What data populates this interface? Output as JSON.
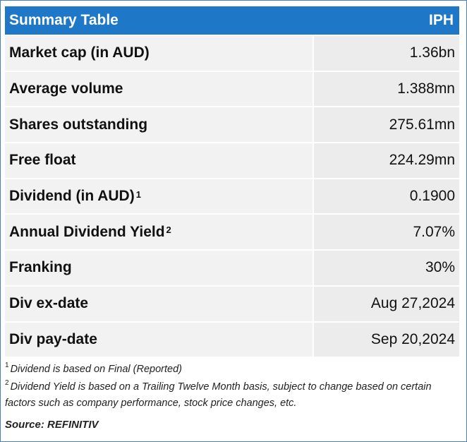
{
  "header": {
    "title": "Summary Table",
    "ticker": "IPH"
  },
  "rows": [
    {
      "label": "Market cap (in AUD)",
      "sup": "",
      "value": "1.36bn"
    },
    {
      "label": "Average volume",
      "sup": "",
      "value": "1.388mn"
    },
    {
      "label": "Shares outstanding",
      "sup": "",
      "value": "275.61mn"
    },
    {
      "label": "Free float",
      "sup": "",
      "value": "224.29mn"
    },
    {
      "label": "Dividend (in AUD)",
      "sup": "1",
      "value": "0.1900"
    },
    {
      "label": "Annual Dividend Yield",
      "sup": "2",
      "value": "7.07%"
    },
    {
      "label": "Franking",
      "sup": "",
      "value": "30%"
    },
    {
      "label": "Div ex-date",
      "sup": "",
      "value": "Aug 27,2024"
    },
    {
      "label": "Div pay-date",
      "sup": "",
      "value": "Sep 20,2024"
    }
  ],
  "footnotes": {
    "fn1_mark": "1",
    "fn1_text": "Dividend is based on  Final  (Reported)",
    "fn2_mark": "2",
    "fn2_text": "Dividend Yield is based on a Trailing Twelve Month basis, subject to change based on certain factors such as company performance, stock price changes, etc.",
    "source": "Source: REFINITIV"
  },
  "colors": {
    "header_bg": "#1f77c8",
    "border": "#4a7fbf",
    "row_bg": "#f2f2f2"
  }
}
